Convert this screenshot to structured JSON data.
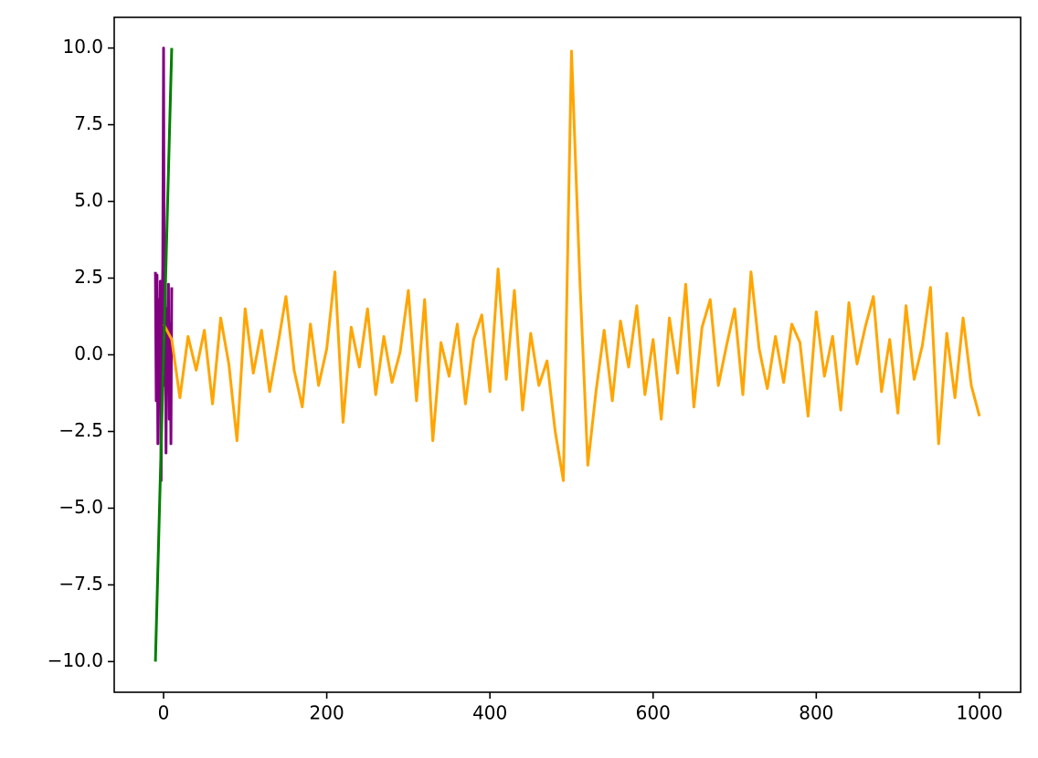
{
  "chart_data": {
    "type": "line",
    "xlim": [
      -60.5,
      1050.5
    ],
    "ylim": [
      -11,
      11
    ],
    "xticks": [
      0,
      200,
      400,
      600,
      800,
      1000
    ],
    "yticks": [
      {
        "value": -10,
        "label": "−10.0"
      },
      {
        "value": -7.5,
        "label": "−7.5"
      },
      {
        "value": -5,
        "label": "−5.0"
      },
      {
        "value": -2.5,
        "label": "−2.5"
      },
      {
        "value": 0,
        "label": "0.0"
      },
      {
        "value": 2.5,
        "label": "2.5"
      },
      {
        "value": 5,
        "label": "5.0"
      },
      {
        "value": 7.5,
        "label": "7.5"
      },
      {
        "value": 10,
        "label": "10.0"
      }
    ],
    "grid": false,
    "series": [
      {
        "color": "#800080",
        "x": [
          -10,
          -9,
          -8,
          -7,
          -6,
          -5,
          -4,
          -3,
          -2,
          -1,
          0,
          1,
          2,
          3,
          4,
          5,
          6,
          7,
          8,
          9,
          10
        ],
        "values": [
          2.7,
          -1.5,
          2.6,
          -2.9,
          1.8,
          -0.8,
          2.4,
          -4.1,
          1.2,
          2.8,
          10.0,
          -1.0,
          2.2,
          -3.2,
          1.5,
          -0.5,
          2.3,
          -2.1,
          1.0,
          -2.9,
          2.2
        ]
      },
      {
        "color": "#ffa500",
        "x": [
          0,
          10,
          20,
          30,
          40,
          50,
          60,
          70,
          80,
          90,
          100,
          110,
          120,
          130,
          140,
          150,
          160,
          170,
          180,
          190,
          200,
          210,
          220,
          230,
          240,
          250,
          260,
          270,
          280,
          290,
          300,
          310,
          320,
          330,
          340,
          350,
          360,
          370,
          380,
          390,
          400,
          410,
          420,
          430,
          440,
          450,
          460,
          470,
          480,
          490,
          500,
          510,
          520,
          530,
          540,
          550,
          560,
          570,
          580,
          590,
          600,
          610,
          620,
          630,
          640,
          650,
          660,
          670,
          680,
          690,
          700,
          710,
          720,
          730,
          740,
          750,
          760,
          770,
          780,
          790,
          800,
          810,
          820,
          830,
          840,
          850,
          860,
          870,
          880,
          890,
          900,
          910,
          920,
          930,
          940,
          950,
          960,
          970,
          980,
          990,
          1000
        ],
        "values": [
          1.0,
          0.5,
          -1.4,
          0.6,
          -0.5,
          0.8,
          -1.6,
          1.2,
          -0.3,
          -2.8,
          1.5,
          -0.6,
          0.8,
          -1.2,
          0.3,
          1.9,
          -0.5,
          -1.7,
          1.0,
          -1.0,
          0.2,
          2.7,
          -2.2,
          0.9,
          -0.4,
          1.5,
          -1.3,
          0.6,
          -0.9,
          0.1,
          2.1,
          -1.5,
          1.8,
          -2.8,
          0.4,
          -0.7,
          1.0,
          -1.6,
          0.5,
          1.3,
          -1.2,
          2.8,
          -0.8,
          2.1,
          -1.8,
          0.7,
          -1.0,
          -0.2,
          -2.5,
          -4.1,
          9.9,
          2.6,
          -3.6,
          -1.2,
          0.8,
          -1.5,
          1.1,
          -0.4,
          1.6,
          -1.3,
          0.5,
          -2.1,
          1.2,
          -0.6,
          2.3,
          -1.7,
          0.9,
          1.8,
          -1.0,
          0.3,
          1.5,
          -1.3,
          2.7,
          0.2,
          -1.1,
          0.6,
          -0.9,
          1.0,
          0.4,
          -2.0,
          1.4,
          -0.7,
          0.6,
          -1.8,
          1.7,
          -0.3,
          0.9,
          1.9,
          -1.2,
          0.5,
          -1.9,
          1.6,
          -0.8,
          0.3,
          2.2,
          -2.9,
          0.7,
          -1.4,
          1.2,
          -1.0,
          -2.0
        ]
      },
      {
        "color": "#008000",
        "x": [
          -10,
          10
        ],
        "values": [
          -10,
          10
        ]
      }
    ]
  }
}
